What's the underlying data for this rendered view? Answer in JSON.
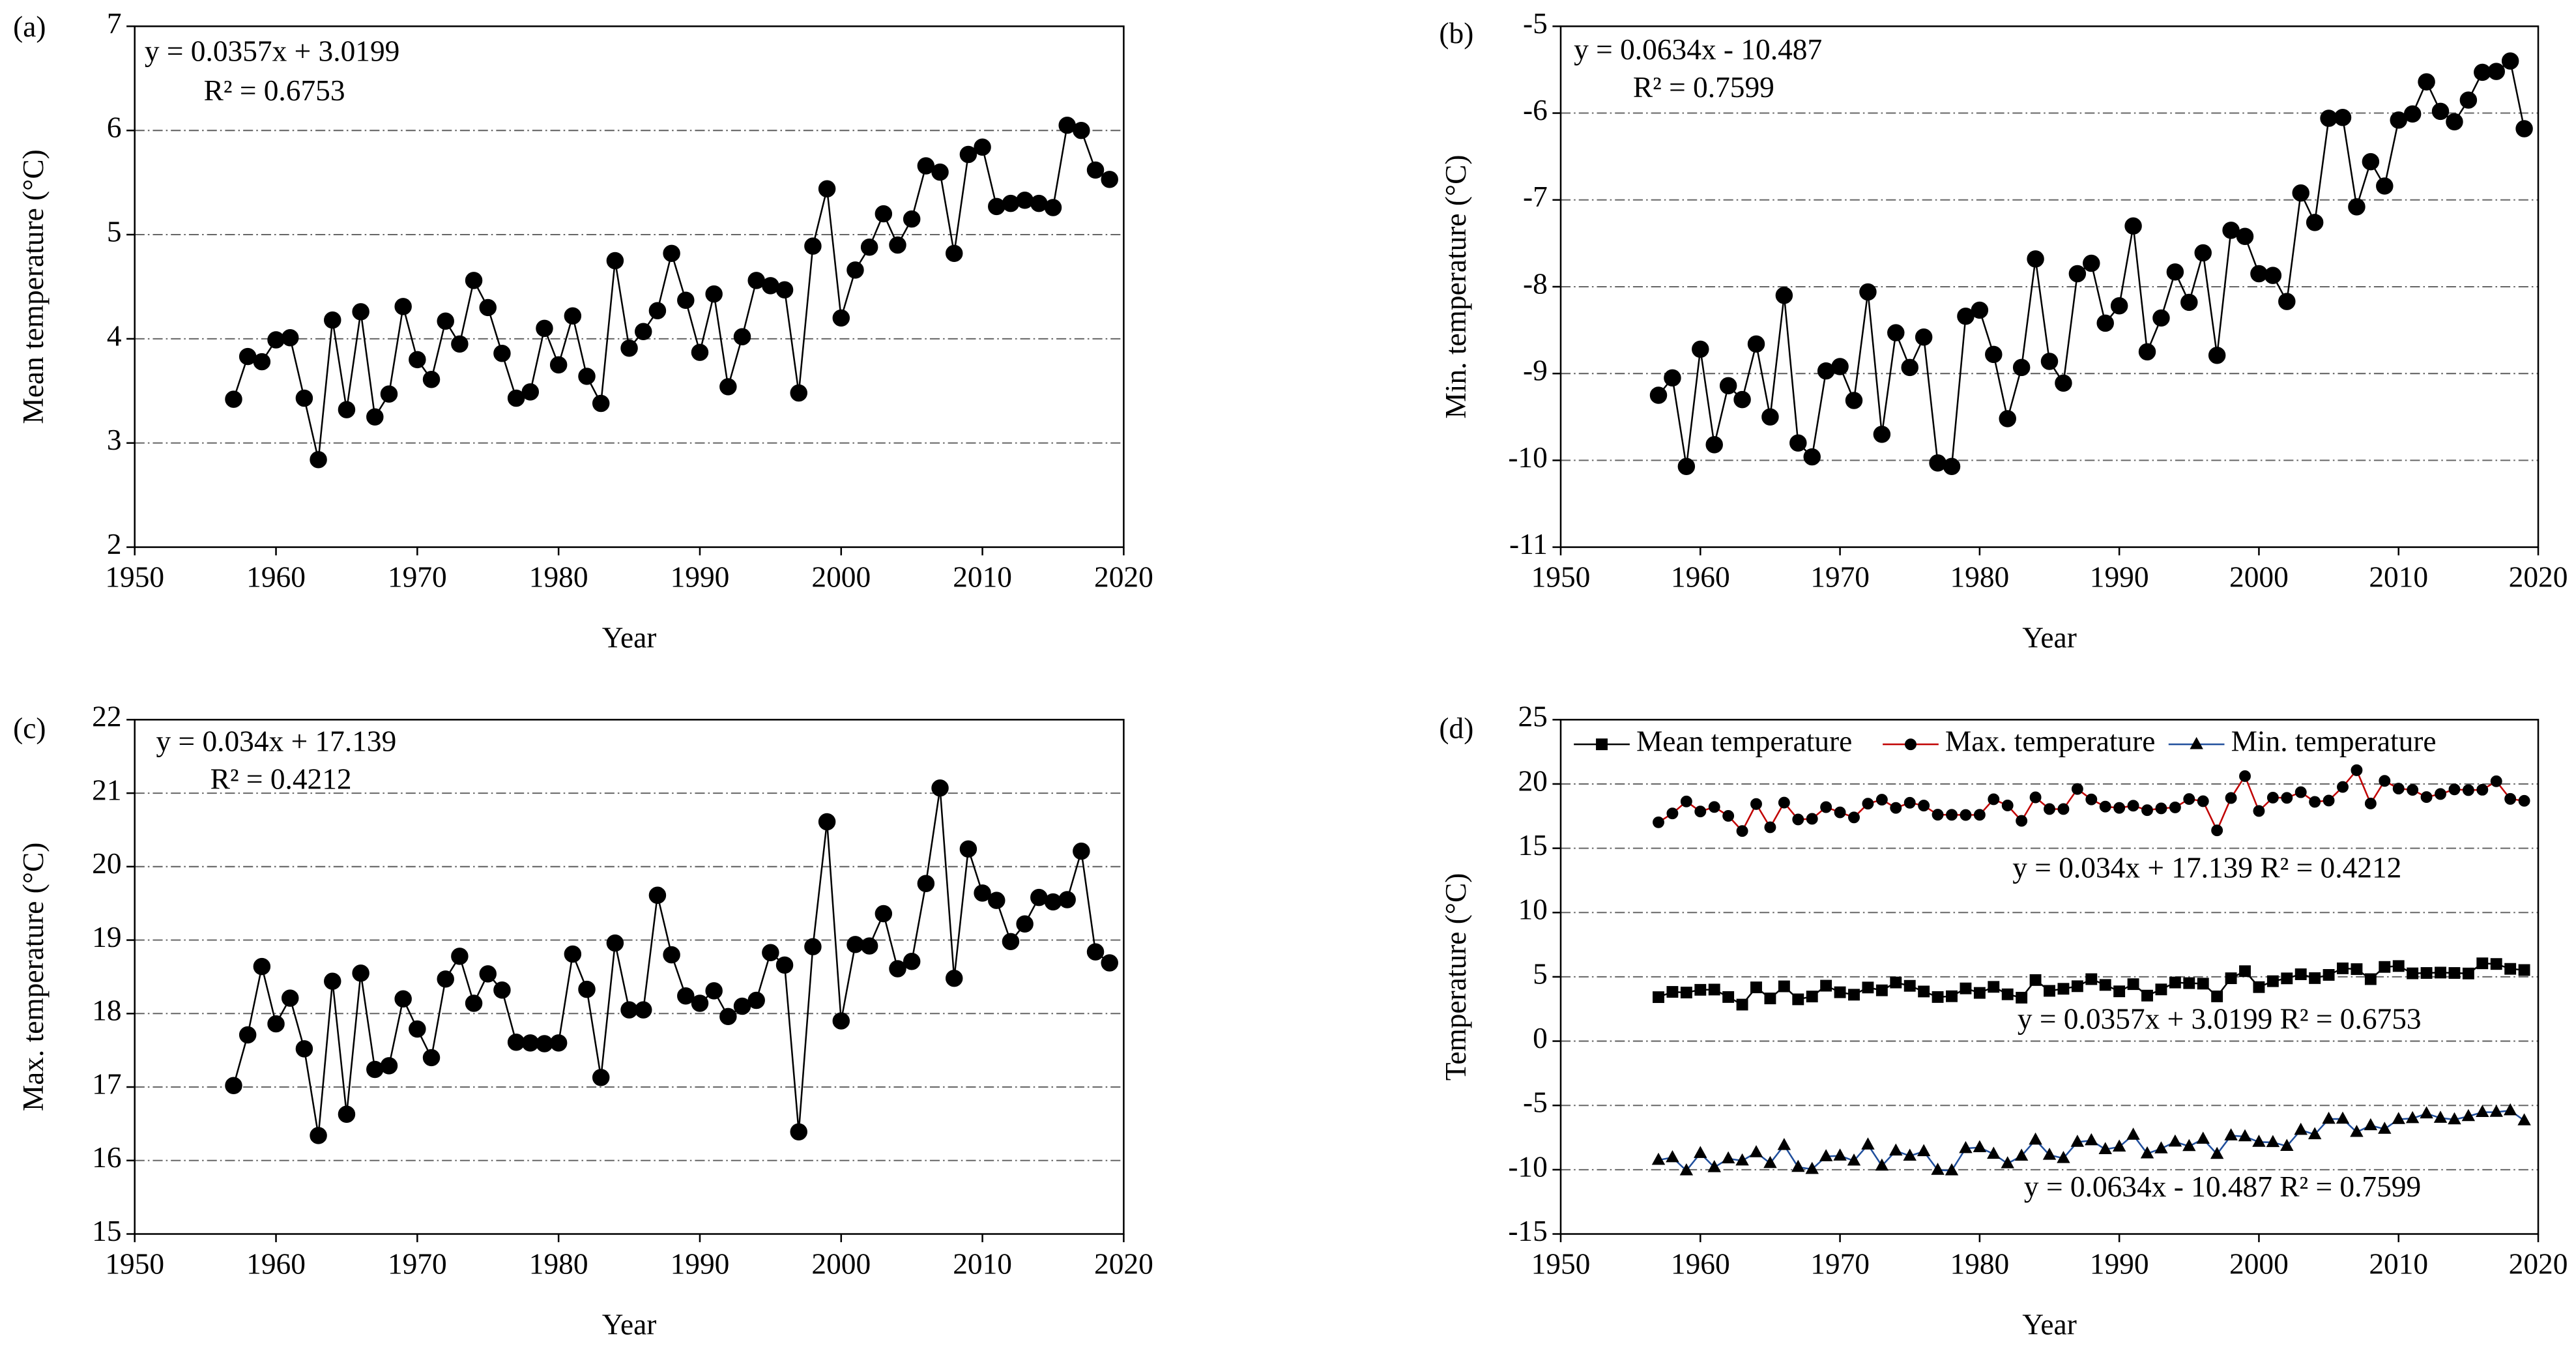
{
  "chart_data": [
    {
      "type": "line",
      "panel_label": "(a)",
      "xlabel": "Year",
      "ylabel": "Mean temperature (°C)",
      "xlim": [
        1950,
        2020
      ],
      "xticks": [
        1950,
        1960,
        1970,
        1980,
        1990,
        2000,
        2010,
        2020
      ],
      "ylim": [
        2,
        7
      ],
      "yticks": [
        2,
        3,
        4,
        5,
        6,
        7
      ],
      "grid": true,
      "annotations": [
        "y = 0.0357x + 3.0199",
        "R² = 0.6753"
      ],
      "x": [
        1957,
        1958,
        1959,
        1960,
        1961,
        1962,
        1963,
        1964,
        1965,
        1966,
        1967,
        1968,
        1969,
        1970,
        1971,
        1972,
        1973,
        1974,
        1975,
        1976,
        1977,
        1978,
        1979,
        1980,
        1981,
        1982,
        1983,
        1984,
        1985,
        1986,
        1987,
        1988,
        1989,
        1990,
        1991,
        1992,
        1993,
        1994,
        1995,
        1996,
        1997,
        1998,
        1999,
        2000,
        2001,
        2002,
        2003,
        2004,
        2005,
        2006,
        2007,
        2008,
        2009,
        2010,
        2011,
        2012,
        2013,
        2014,
        2015,
        2016,
        2017,
        2018,
        2019
      ],
      "series": [
        {
          "color": "#000000",
          "marker": "circle",
          "values": [
            3.42,
            3.83,
            3.78,
            3.99,
            4.01,
            3.43,
            2.84,
            4.18,
            3.32,
            4.26,
            3.25,
            3.47,
            4.31,
            3.8,
            3.61,
            4.17,
            3.95,
            4.56,
            4.3,
            3.86,
            3.43,
            3.49,
            4.1,
            3.75,
            4.22,
            3.64,
            3.38,
            4.75,
            3.91,
            4.07,
            4.27,
            4.82,
            4.37,
            3.87,
            4.43,
            3.54,
            4.02,
            4.56,
            4.51,
            4.47,
            3.48,
            4.89,
            5.44,
            4.2,
            4.66,
            4.88,
            5.2,
            4.9,
            5.15,
            5.66,
            5.6,
            4.82,
            5.77,
            5.84,
            5.27,
            5.3,
            5.33,
            5.3,
            5.26,
            6.05,
            6.0,
            5.62,
            5.53
          ]
        }
      ]
    },
    {
      "type": "line",
      "panel_label": "(b)",
      "xlabel": "Year",
      "ylabel": "Min. temperature (°C)",
      "xlim": [
        1950,
        2020
      ],
      "xticks": [
        1950,
        1960,
        1970,
        1980,
        1990,
        2000,
        2010,
        2020
      ],
      "ylim": [
        -11,
        -5
      ],
      "yticks": [
        -11,
        -10,
        -9,
        -8,
        -7,
        -6,
        -5
      ],
      "grid": true,
      "annotations": [
        "y = 0.0634x - 10.487",
        "R² = 0.7599"
      ],
      "x": [
        1957,
        1958,
        1959,
        1960,
        1961,
        1962,
        1963,
        1964,
        1965,
        1966,
        1967,
        1968,
        1969,
        1970,
        1971,
        1972,
        1973,
        1974,
        1975,
        1976,
        1977,
        1978,
        1979,
        1980,
        1981,
        1982,
        1983,
        1984,
        1985,
        1986,
        1987,
        1988,
        1989,
        1990,
        1991,
        1992,
        1993,
        1994,
        1995,
        1996,
        1997,
        1998,
        1999,
        2000,
        2001,
        2002,
        2003,
        2004,
        2005,
        2006,
        2007,
        2008,
        2009,
        2010,
        2011,
        2012,
        2013,
        2014,
        2015,
        2016,
        2017,
        2018,
        2019
      ],
      "series": [
        {
          "color": "#000000",
          "marker": "circle",
          "values": [
            -9.25,
            -9.05,
            -10.07,
            -8.72,
            -9.82,
            -9.14,
            -9.3,
            -8.66,
            -9.5,
            -8.1,
            -9.8,
            -9.96,
            -8.97,
            -8.92,
            -9.31,
            -8.06,
            -9.7,
            -8.53,
            -8.93,
            -8.58,
            -10.03,
            -10.07,
            -8.34,
            -8.27,
            -8.78,
            -9.52,
            -8.93,
            -7.68,
            -8.86,
            -9.11,
            -7.85,
            -7.73,
            -8.42,
            -8.22,
            -7.3,
            -8.75,
            -8.36,
            -7.83,
            -8.18,
            -7.61,
            -8.79,
            -7.35,
            -7.42,
            -7.85,
            -7.87,
            -8.17,
            -6.92,
            -7.26,
            -6.06,
            -6.05,
            -7.08,
            -6.56,
            -6.84,
            -6.08,
            -6.01,
            -5.64,
            -5.98,
            -6.1,
            -5.85,
            -5.53,
            -5.52,
            -5.4,
            -6.18
          ]
        }
      ]
    },
    {
      "type": "line",
      "panel_label": "(c)",
      "xlabel": "Year",
      "ylabel": "Max. temperature (°C)",
      "xlim": [
        1950,
        2020
      ],
      "xticks": [
        1950,
        1960,
        1970,
        1980,
        1990,
        2000,
        2010,
        2020
      ],
      "ylim": [
        15,
        22
      ],
      "yticks": [
        15,
        16,
        17,
        18,
        19,
        20,
        21,
        22
      ],
      "grid": true,
      "annotations": [
        "y = 0.034x + 17.139",
        "R² = 0.4212"
      ],
      "x": [
        1957,
        1958,
        1959,
        1960,
        1961,
        1962,
        1963,
        1964,
        1965,
        1966,
        1967,
        1968,
        1969,
        1970,
        1971,
        1972,
        1973,
        1974,
        1975,
        1976,
        1977,
        1978,
        1979,
        1980,
        1981,
        1982,
        1983,
        1984,
        1985,
        1986,
        1987,
        1988,
        1989,
        1990,
        1991,
        1992,
        1993,
        1994,
        1995,
        1996,
        1997,
        1998,
        1999,
        2000,
        2001,
        2002,
        2003,
        2004,
        2005,
        2006,
        2007,
        2008,
        2009,
        2010,
        2011,
        2012,
        2013,
        2014,
        2015,
        2016,
        2017,
        2018,
        2019
      ],
      "series": [
        {
          "color": "#000000",
          "marker": "circle",
          "values": [
            17.02,
            17.71,
            18.64,
            17.86,
            18.21,
            17.52,
            16.34,
            18.44,
            16.63,
            18.55,
            17.24,
            17.29,
            18.2,
            17.79,
            17.4,
            18.47,
            18.78,
            18.14,
            18.54,
            18.32,
            17.61,
            17.6,
            17.59,
            17.6,
            18.81,
            18.33,
            17.13,
            18.96,
            18.05,
            18.05,
            19.61,
            18.8,
            18.24,
            18.14,
            18.31,
            17.96,
            18.1,
            18.18,
            18.83,
            18.66,
            16.39,
            18.91,
            20.61,
            17.9,
            18.94,
            18.92,
            19.36,
            18.61,
            18.71,
            19.77,
            21.07,
            18.48,
            20.24,
            19.64,
            19.54,
            18.98,
            19.22,
            19.58,
            19.52,
            19.55,
            20.21,
            18.84,
            18.69
          ]
        }
      ]
    },
    {
      "type": "line",
      "panel_label": "(d)",
      "xlabel": "Year",
      "ylabel": "Temperature (°C)",
      "xlim": [
        1950,
        2020
      ],
      "xticks": [
        1950,
        1960,
        1970,
        1980,
        1990,
        2000,
        2010,
        2020
      ],
      "ylim": [
        -15,
        25
      ],
      "yticks": [
        -15,
        -10,
        -5,
        0,
        5,
        10,
        15,
        20,
        25
      ],
      "grid": true,
      "legend": "top",
      "annotations": [
        "y = 0.034x + 17.139  R² = 0.4212",
        "y = 0.0357x + 3.0199  R² = 0.6753",
        "y = 0.0634x - 10.487  R² = 0.7599"
      ],
      "x": [
        1957,
        1958,
        1959,
        1960,
        1961,
        1962,
        1963,
        1964,
        1965,
        1966,
        1967,
        1968,
        1969,
        1970,
        1971,
        1972,
        1973,
        1974,
        1975,
        1976,
        1977,
        1978,
        1979,
        1980,
        1981,
        1982,
        1983,
        1984,
        1985,
        1986,
        1987,
        1988,
        1989,
        1990,
        1991,
        1992,
        1993,
        1994,
        1995,
        1996,
        1997,
        1998,
        1999,
        2000,
        2001,
        2002,
        2003,
        2004,
        2005,
        2006,
        2007,
        2008,
        2009,
        2010,
        2011,
        2012,
        2013,
        2014,
        2015,
        2016,
        2017,
        2018,
        2019
      ],
      "series": [
        {
          "name": "Mean temperature",
          "color": "#000000",
          "marker": "square",
          "values": [
            3.42,
            3.83,
            3.78,
            3.99,
            4.01,
            3.43,
            2.84,
            4.18,
            3.32,
            4.26,
            3.25,
            3.47,
            4.31,
            3.8,
            3.61,
            4.17,
            3.95,
            4.56,
            4.3,
            3.86,
            3.43,
            3.49,
            4.1,
            3.75,
            4.22,
            3.64,
            3.38,
            4.75,
            3.91,
            4.07,
            4.27,
            4.82,
            4.37,
            3.87,
            4.43,
            3.54,
            4.02,
            4.56,
            4.51,
            4.47,
            3.48,
            4.89,
            5.44,
            4.2,
            4.66,
            4.88,
            5.2,
            4.9,
            5.15,
            5.66,
            5.6,
            4.82,
            5.77,
            5.84,
            5.27,
            5.3,
            5.33,
            5.3,
            5.26,
            6.05,
            6.0,
            5.62,
            5.53
          ]
        },
        {
          "name": "Max. temperature",
          "color": "#c00000",
          "marker": "circle",
          "values": [
            17.02,
            17.71,
            18.64,
            17.86,
            18.21,
            17.52,
            16.34,
            18.44,
            16.63,
            18.55,
            17.24,
            17.29,
            18.2,
            17.79,
            17.4,
            18.47,
            18.78,
            18.14,
            18.54,
            18.32,
            17.61,
            17.6,
            17.59,
            17.6,
            18.81,
            18.33,
            17.13,
            18.96,
            18.05,
            18.05,
            19.61,
            18.8,
            18.24,
            18.14,
            18.31,
            17.96,
            18.1,
            18.18,
            18.83,
            18.66,
            16.39,
            18.91,
            20.61,
            17.9,
            18.94,
            18.92,
            19.36,
            18.61,
            18.71,
            19.77,
            21.07,
            18.48,
            20.24,
            19.64,
            19.54,
            18.98,
            19.22,
            19.58,
            19.52,
            19.55,
            20.21,
            18.84,
            18.69
          ]
        },
        {
          "name": "Min. temperature",
          "color": "#1f4e9c",
          "marker": "triangle",
          "values": [
            -9.25,
            -9.05,
            -10.07,
            -8.72,
            -9.82,
            -9.14,
            -9.3,
            -8.66,
            -9.5,
            -8.1,
            -9.8,
            -9.96,
            -8.97,
            -8.92,
            -9.31,
            -8.06,
            -9.7,
            -8.53,
            -8.93,
            -8.58,
            -10.03,
            -10.07,
            -8.34,
            -8.27,
            -8.78,
            -9.52,
            -8.93,
            -7.68,
            -8.86,
            -9.11,
            -7.85,
            -7.73,
            -8.42,
            -8.22,
            -7.3,
            -8.75,
            -8.36,
            -7.83,
            -8.18,
            -7.61,
            -8.79,
            -7.35,
            -7.42,
            -7.85,
            -7.87,
            -8.17,
            -6.92,
            -7.26,
            -6.06,
            -6.05,
            -7.08,
            -6.56,
            -6.84,
            -6.08,
            -6.01,
            -5.64,
            -5.98,
            -6.1,
            -5.85,
            -5.53,
            -5.52,
            -5.4,
            -6.18
          ]
        }
      ]
    }
  ]
}
